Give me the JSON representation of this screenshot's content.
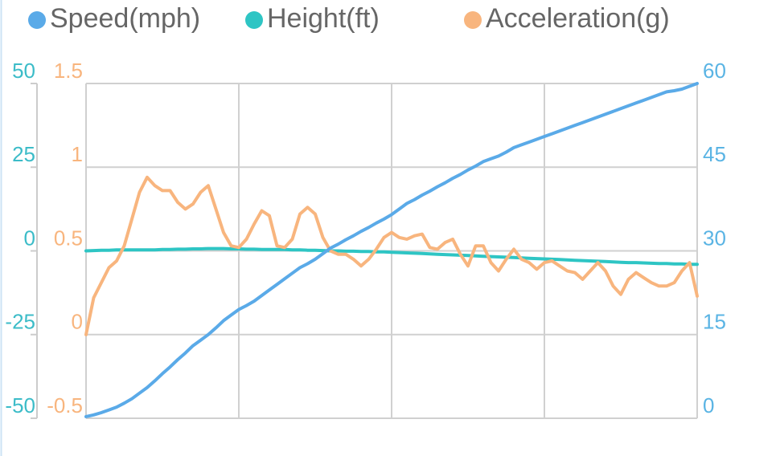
{
  "chart_data": {
    "type": "line",
    "categories": [
      null,
      null,
      null,
      null,
      null,
      null,
      null,
      null,
      null,
      null,
      null,
      null,
      null,
      null,
      null,
      null,
      null,
      null,
      null,
      null,
      null,
      null,
      null,
      null,
      null,
      null,
      null,
      null,
      null,
      null,
      null,
      null,
      null,
      null,
      null,
      null,
      null,
      null,
      null,
      null,
      null,
      null,
      null,
      null,
      null,
      null,
      null,
      null,
      null,
      null,
      null,
      null,
      null,
      null,
      null,
      null,
      null,
      null,
      null,
      null,
      null,
      null,
      null,
      null,
      null,
      null,
      null,
      null,
      null,
      null,
      null,
      null,
      null,
      null,
      null,
      null,
      null,
      null,
      null,
      null,
      null
    ],
    "series": [
      {
        "name": "Speed(mph)",
        "color": "#5aaae8",
        "axis": "y2",
        "values": [
          0.3,
          0.6,
          1,
          1.5,
          2,
          2.7,
          3.5,
          4.5,
          5.5,
          6.7,
          8,
          9.2,
          10.5,
          11.7,
          13,
          14,
          15,
          16.2,
          17.5,
          18.5,
          19.5,
          20.2,
          21,
          22,
          23,
          24,
          25,
          26,
          27,
          27.7,
          28.5,
          29.5,
          30.5,
          31.2,
          32,
          32.7,
          33.5,
          34.2,
          35,
          35.7,
          36.5,
          37.5,
          38.5,
          39.2,
          40,
          40.7,
          41.5,
          42.2,
          43,
          43.7,
          44.5,
          45.2,
          46,
          46.5,
          47,
          47.7,
          48.5,
          49,
          49.5,
          50,
          50.5,
          51,
          51.5,
          52,
          52.5,
          53,
          53.5,
          54,
          54.5,
          55,
          55.5,
          56,
          56.5,
          57,
          57.5,
          58,
          58.5,
          58.7,
          59,
          59.5,
          60
        ]
      },
      {
        "name": "Height(ft)",
        "color": "#2ec5c4",
        "axis": "y",
        "values": [
          0,
          0.1,
          0.2,
          0.2,
          0.3,
          0.3,
          0.3,
          0.3,
          0.3,
          0.3,
          0.4,
          0.4,
          0.5,
          0.5,
          0.6,
          0.6,
          0.7,
          0.7,
          0.7,
          0.6,
          0.6,
          0.5,
          0.5,
          0.4,
          0.4,
          0.4,
          0.4,
          0.3,
          0.3,
          0.2,
          0.2,
          0.1,
          0,
          0,
          -0.1,
          -0.1,
          -0.2,
          -0.2,
          -0.3,
          -0.3,
          -0.4,
          -0.5,
          -0.6,
          -0.7,
          -0.8,
          -0.9,
          -1,
          -1.1,
          -1.2,
          -1.3,
          -1.4,
          -1.5,
          -1.6,
          -1.7,
          -1.8,
          -1.9,
          -2,
          -2.1,
          -2.2,
          -2.3,
          -2.4,
          -2.5,
          -2.6,
          -2.7,
          -2.8,
          -2.9,
          -3,
          -3.1,
          -3.2,
          -3.3,
          -3.4,
          -3.5,
          -3.5,
          -3.6,
          -3.7,
          -3.8,
          -3.8,
          -3.9,
          -3.9,
          -4,
          -4
        ]
      },
      {
        "name": "Acceleration(g)",
        "color": "#f8b57e",
        "axis": "y3",
        "values": [
          0,
          0.22,
          0.31,
          0.4,
          0.44,
          0.53,
          0.69,
          0.85,
          0.94,
          0.89,
          0.86,
          0.86,
          0.79,
          0.75,
          0.78,
          0.85,
          0.89,
          0.75,
          0.61,
          0.53,
          0.52,
          0.57,
          0.66,
          0.74,
          0.71,
          0.53,
          0.52,
          0.57,
          0.72,
          0.76,
          0.72,
          0.58,
          0.5,
          0.48,
          0.48,
          0.45,
          0.41,
          0.45,
          0.51,
          0.58,
          0.61,
          0.58,
          0.57,
          0.59,
          0.6,
          0.52,
          0.51,
          0.55,
          0.57,
          0.48,
          0.41,
          0.53,
          0.53,
          0.43,
          0.38,
          0.45,
          0.51,
          0.45,
          0.43,
          0.39,
          0.43,
          0.44,
          0.41,
          0.38,
          0.37,
          0.33,
          0.38,
          0.43,
          0.38,
          0.29,
          0.24,
          0.33,
          0.37,
          0.34,
          0.31,
          0.29,
          0.29,
          0.31,
          0.38,
          0.43,
          0.23
        ]
      }
    ],
    "ylim": [
      -50,
      50
    ],
    "yticks": [
      -50,
      -25,
      0,
      25,
      50
    ],
    "ycolor": "#3cbcc8",
    "y3lim": [
      -0.5,
      1.5
    ],
    "y3ticks": [
      -0.5,
      0,
      0.5,
      1,
      1.5
    ],
    "y3color": "#f8b57e",
    "y2lim": [
      0,
      60
    ],
    "y2ticks": [
      0,
      15,
      30,
      45,
      60
    ],
    "y2color": "#5ab4e4",
    "grid": true
  }
}
